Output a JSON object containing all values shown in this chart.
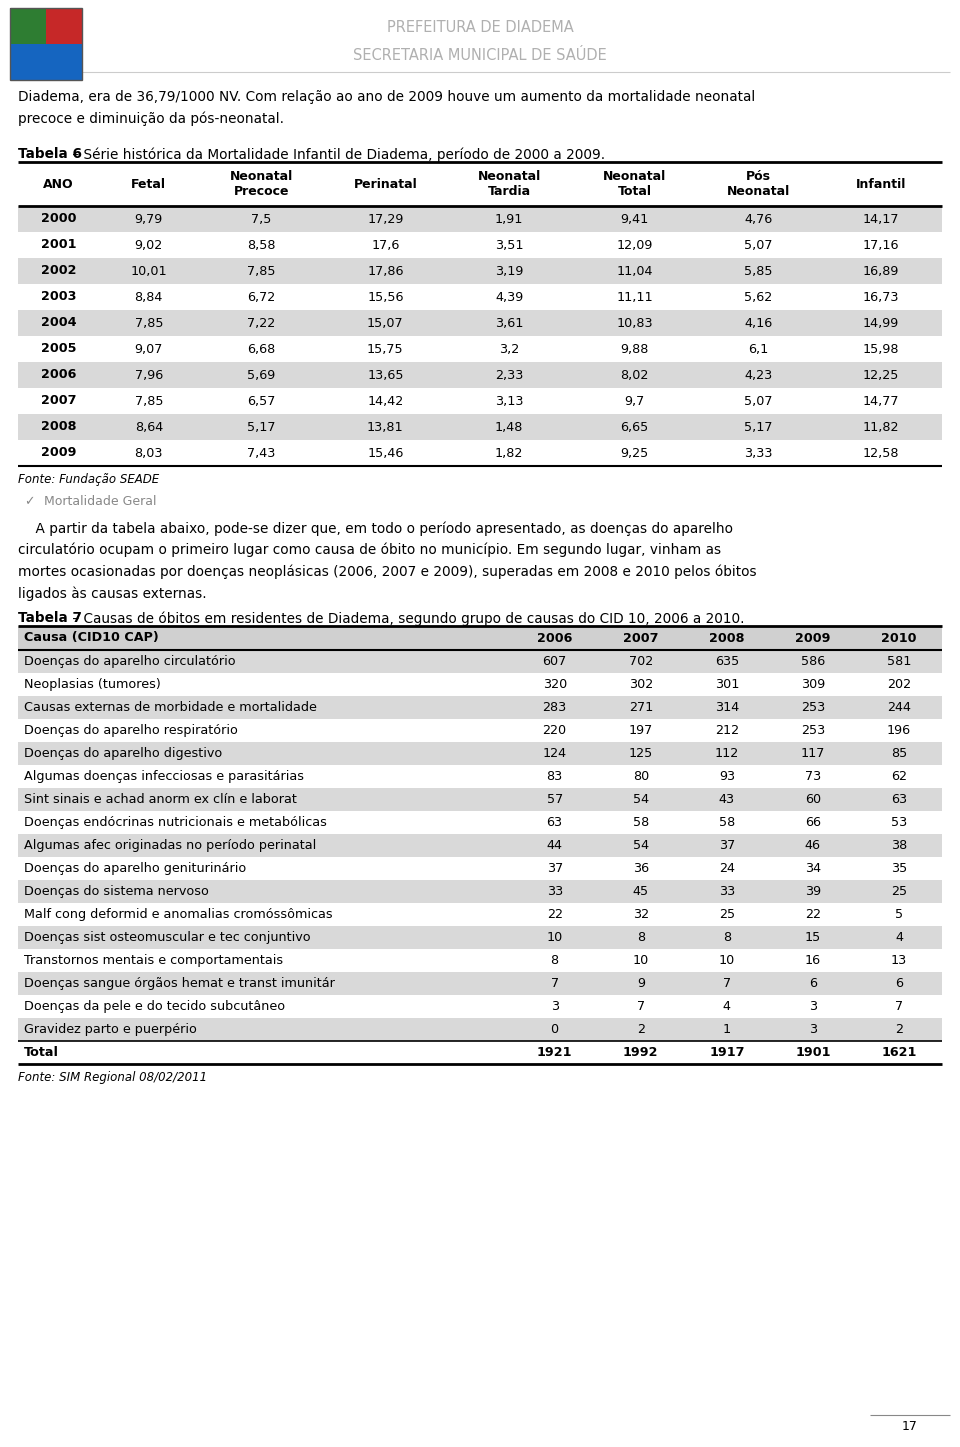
{
  "header_line1": "PREFEITURA DE DIADEMA",
  "header_line2": "SECRETARIA MUNICIPAL DE SAÚDE",
  "intro_text": "Diadema, era de 36,79/1000 NV. Com relação ao ano de 2009 houve um aumento da mortalidade neonatal\nprecoce e diminuição da pós-neonatal.",
  "table6_title_bold": "Tabela 6",
  "table6_title_rest": " – Série histórica da Mortalidade Infantil de Diadema, período de 2000 a 2009.",
  "table6_headers": [
    "ANO",
    "Fetal",
    "Neonatal\nPrecoce",
    "Perinatal",
    "Neonatal\nTardia",
    "Neonatal\nTotal",
    "Pós\nNeonatal",
    "Infantil"
  ],
  "table6_data": [
    [
      "2000",
      "9,79",
      "7,5",
      "17,29",
      "1,91",
      "9,41",
      "4,76",
      "14,17"
    ],
    [
      "2001",
      "9,02",
      "8,58",
      "17,6",
      "3,51",
      "12,09",
      "5,07",
      "17,16"
    ],
    [
      "2002",
      "10,01",
      "7,85",
      "17,86",
      "3,19",
      "11,04",
      "5,85",
      "16,89"
    ],
    [
      "2003",
      "8,84",
      "6,72",
      "15,56",
      "4,39",
      "11,11",
      "5,62",
      "16,73"
    ],
    [
      "2004",
      "7,85",
      "7,22",
      "15,07",
      "3,61",
      "10,83",
      "4,16",
      "14,99"
    ],
    [
      "2005",
      "9,07",
      "6,68",
      "15,75",
      "3,2",
      "9,88",
      "6,1",
      "15,98"
    ],
    [
      "2006",
      "7,96",
      "5,69",
      "13,65",
      "2,33",
      "8,02",
      "4,23",
      "12,25"
    ],
    [
      "2007",
      "7,85",
      "6,57",
      "14,42",
      "3,13",
      "9,7",
      "5,07",
      "14,77"
    ],
    [
      "2008",
      "8,64",
      "5,17",
      "13,81",
      "1,48",
      "6,65",
      "5,17",
      "11,82"
    ],
    [
      "2009",
      "8,03",
      "7,43",
      "15,46",
      "1,82",
      "9,25",
      "3,33",
      "12,58"
    ]
  ],
  "table6_shaded_rows": [
    0,
    2,
    4,
    6,
    8
  ],
  "table6_fonte": "Fonte: Fundação SEADE",
  "mortalidade_text": "Mortalidade Geral",
  "para_text": "    A partir da tabela abaixo, pode-se dizer que, em todo o período apresentado, as doenças do aparelho\ncirculatório ocupam o primeiro lugar como causa de óbito no município. Em segundo lugar, vinham as\nmortes ocasionadas por doenças neoplásicas (2006, 2007 e 2009), superadas em 2008 e 2010 pelos óbitos\nligados às causas externas.",
  "table7_title_bold": "Tabela 7",
  "table7_title_rest": " – Causas de óbitos em residentes de Diadema, segundo grupo de causas do CID 10, 2006 a 2010.",
  "table7_headers": [
    "Causa (CID10 CAP)",
    "2006",
    "2007",
    "2008",
    "2009",
    "2010"
  ],
  "table7_data": [
    [
      "Doenças do aparelho circulatório",
      "607",
      "702",
      "635",
      "586",
      "581"
    ],
    [
      "Neoplasias (tumores)",
      "320",
      "302",
      "301",
      "309",
      "202"
    ],
    [
      "Causas externas de morbidade e mortalidade",
      "283",
      "271",
      "314",
      "253",
      "244"
    ],
    [
      "Doenças do aparelho respiratório",
      "220",
      "197",
      "212",
      "253",
      "196"
    ],
    [
      "Doenças do aparelho digestivo",
      "124",
      "125",
      "112",
      "117",
      "85"
    ],
    [
      "Algumas doenças infecciosas e parasitárias",
      "83",
      "80",
      "93",
      "73",
      "62"
    ],
    [
      "Sint sinais e achad anorm ex clín e laborat",
      "57",
      "54",
      "43",
      "60",
      "63"
    ],
    [
      "Doenças endócrinas nutricionais e metabólicas",
      "63",
      "58",
      "58",
      "66",
      "53"
    ],
    [
      "Algumas afec originadas no período perinatal",
      "44",
      "54",
      "37",
      "46",
      "38"
    ],
    [
      "Doenças do aparelho geniturinário",
      "37",
      "36",
      "24",
      "34",
      "35"
    ],
    [
      "Doenças do sistema nervoso",
      "33",
      "45",
      "33",
      "39",
      "25"
    ],
    [
      "Malf cong deformid e anomalias cromóssômicas",
      "22",
      "32",
      "25",
      "22",
      "5"
    ],
    [
      "Doenças sist osteomuscular e tec conjuntivo",
      "10",
      "8",
      "8",
      "15",
      "4"
    ],
    [
      "Transtornos mentais e comportamentais",
      "8",
      "10",
      "10",
      "16",
      "13"
    ],
    [
      "Doenças sangue órgãos hemat e transt imunitár",
      "7",
      "9",
      "7",
      "6",
      "6"
    ],
    [
      "Doenças da pele e do tecido subcutâneo",
      "3",
      "7",
      "4",
      "3",
      "7"
    ],
    [
      "Gravidez parto e puerpério",
      "0",
      "2",
      "1",
      "3",
      "2"
    ],
    [
      "Total",
      "1921",
      "1992",
      "1917",
      "1901",
      "1621"
    ]
  ],
  "table7_shaded_rows": [
    0,
    2,
    4,
    6,
    8,
    10,
    12,
    14,
    16
  ],
  "table7_fonte": "Fonte: SIM Regional 08/02/2011",
  "page_number": "17",
  "bg_color": "#ffffff",
  "shaded_color": "#d9d9d9",
  "text_color": "#000000",
  "header_text_color": "#b0b0b0",
  "gray_text_color": "#888888"
}
